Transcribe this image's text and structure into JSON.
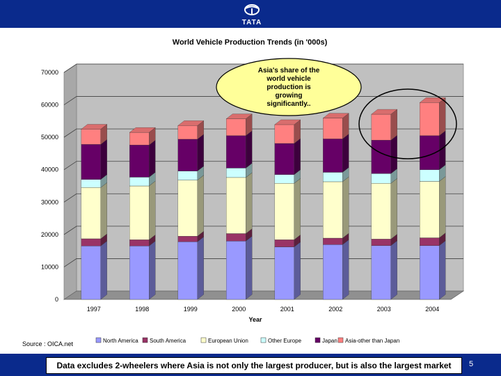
{
  "header": {
    "logo_text": "TATA"
  },
  "chart_data": {
    "type": "bar",
    "stacked": true,
    "title": "World Vehicle Production Trends (in '000s)",
    "xlabel": "Year",
    "ylabel": "",
    "ylim": [
      0,
      70000
    ],
    "yticks": [
      0,
      10000,
      20000,
      30000,
      40000,
      50000,
      60000,
      70000
    ],
    "grid": true,
    "legend_position": "bottom",
    "categories": [
      "1997",
      "1998",
      "1999",
      "2000",
      "2001",
      "2002",
      "2003",
      "2004"
    ],
    "series": [
      {
        "name": "North America",
        "color": "#9999ff",
        "values": [
          16500,
          16500,
          17800,
          18000,
          16200,
          16900,
          16600,
          16600
        ]
      },
      {
        "name": "South America",
        "color": "#993366",
        "values": [
          2200,
          1900,
          1700,
          2300,
          2200,
          2000,
          2000,
          2400
        ]
      },
      {
        "name": "European Union",
        "color": "#ffffcc",
        "values": [
          15800,
          16600,
          17300,
          17300,
          17400,
          17400,
          17200,
          17400
        ]
      },
      {
        "name": "Other Europe",
        "color": "#ccffff",
        "values": [
          2500,
          2700,
          2800,
          2900,
          2700,
          2900,
          3000,
          3600
        ]
      },
      {
        "name": "Japan",
        "color": "#660066",
        "values": [
          10800,
          9900,
          9800,
          10000,
          9600,
          10300,
          10300,
          10500
        ]
      },
      {
        "name": "Asia-other than Japan",
        "color": "#ff8080",
        "values": [
          4700,
          3900,
          4200,
          5200,
          5800,
          6400,
          8000,
          10200
        ]
      }
    ],
    "annotation": "Asia's share of the world vehicle production is growing significantly.."
  },
  "source": "Source : OICA.net",
  "footer": {
    "note": "Data excludes 2-wheelers where Asia is not only the largest producer, but is also the largest market",
    "page_number": "5"
  },
  "colors": {
    "bar_band": "#0a2a8c",
    "plot_wall": "#c0c0c0"
  }
}
